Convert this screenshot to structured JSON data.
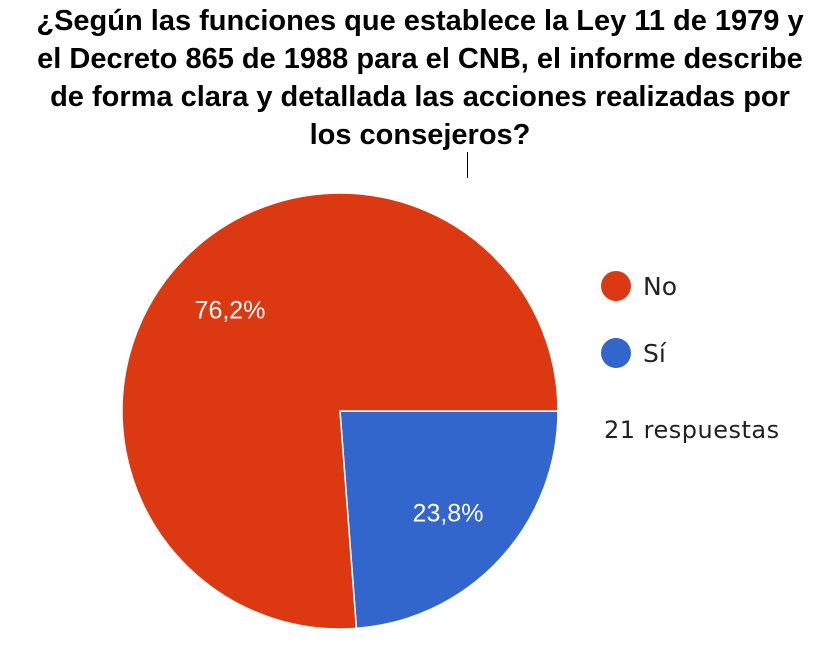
{
  "chart_data": {
    "type": "pie",
    "title": "¿Según las funciones que establece la Ley 11 de 1979 y el Decreto 865 de 1988 para el CNB, el informe describe de forma clara y detallada las acciones realizadas por los consejeros?",
    "title_lines": [
      "¿Según las funciones que establece la Ley 11 de 1979 y",
      "el Decreto 865 de 1988 para el CNB, el informe describe",
      "de forma clara y detallada las acciones realizadas por",
      "los consejeros?"
    ],
    "slices": [
      {
        "label": "No",
        "value": 76.2,
        "display": "76,2%",
        "color": "#dc3912"
      },
      {
        "label": "Sí",
        "value": 23.8,
        "display": "23,8%",
        "color": "#3366cc"
      }
    ],
    "responses_text": "21 respuestas",
    "legend_position": "right"
  }
}
